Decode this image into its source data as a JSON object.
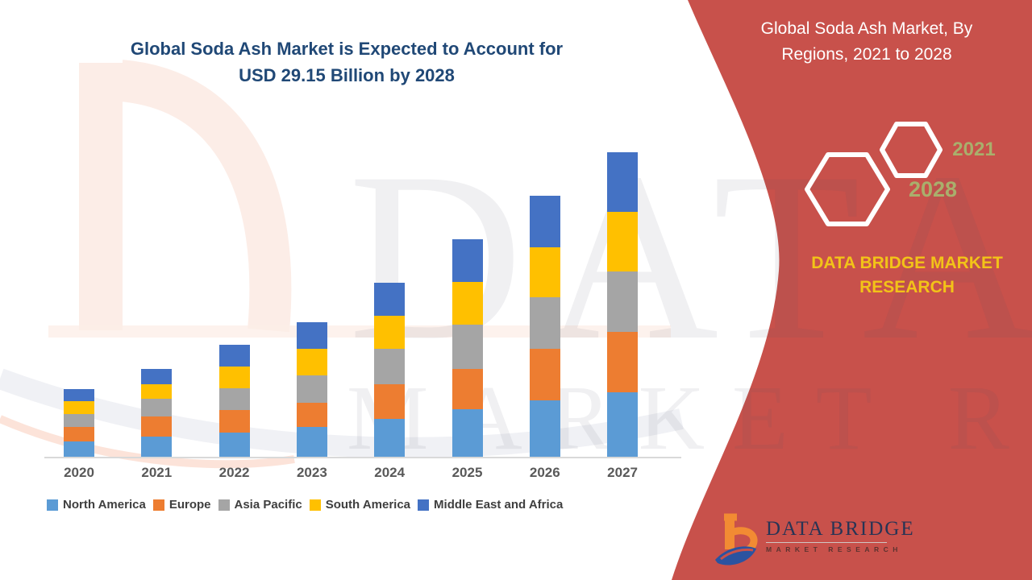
{
  "headline": {
    "line1": "Global Soda Ash Market is Expected to Account for",
    "line2": "USD 29.15 Billion by 2028"
  },
  "side_panel": {
    "title": "Global Soda Ash Market, By Regions, 2021 to 2028",
    "hexagons": [
      {
        "label": "2028"
      },
      {
        "label": "2021"
      }
    ],
    "brand_text": "DATA BRIDGE MARKET RESEARCH"
  },
  "logo": {
    "name_line": "DATA BRIDGE",
    "tagline": "MARKET RESEARCH"
  },
  "watermark": {
    "line1": "DATA BRIDGE",
    "line2": "MARKET RESEARCH"
  },
  "colors": {
    "headline_text": "#204876",
    "panel_background": "#C8514B",
    "panel_text": "#FFFFFF",
    "accent_yellow": "#F2C318",
    "hexagon_year_text": "#A9AF6C",
    "axis_label_text": "#595959",
    "legend_text": "#3F3F3F"
  },
  "chart_data": {
    "type": "bar",
    "stacked": true,
    "title": "",
    "xlabel": "",
    "ylabel": "",
    "grid": false,
    "axis_value_labels_shown": false,
    "legend_position": "bottom",
    "value_unit": "USD billion (estimated; chart shows no value axis)",
    "ylim": [
      0,
      27
    ],
    "categories": [
      "2020",
      "2021",
      "2022",
      "2023",
      "2024",
      "2025",
      "2026",
      "2027"
    ],
    "series": [
      {
        "name": "North America",
        "color": "#5B9BD5",
        "values": [
          1.3,
          1.7,
          2.0,
          2.5,
          3.2,
          4.0,
          4.7,
          5.4
        ]
      },
      {
        "name": "Europe",
        "color": "#ED7D31",
        "values": [
          1.2,
          1.7,
          1.9,
          2.0,
          2.9,
          3.4,
          4.3,
          5.1
        ]
      },
      {
        "name": "Asia Pacific",
        "color": "#A5A5A5",
        "values": [
          1.1,
          1.5,
          1.8,
          2.3,
          3.0,
          3.7,
          4.3,
          5.1
        ]
      },
      {
        "name": "South America",
        "color": "#FFC000",
        "values": [
          1.1,
          1.2,
          1.8,
          2.2,
          2.8,
          3.6,
          4.2,
          5.0
        ]
      },
      {
        "name": "Middle East and Africa",
        "color": "#4472C4",
        "values": [
          1.0,
          1.3,
          1.8,
          2.2,
          2.8,
          3.6,
          4.3,
          5.0
        ]
      }
    ],
    "estimated_totals": [
      5.7,
      7.4,
      9.3,
      11.2,
      14.7,
      18.3,
      21.8,
      25.6
    ]
  }
}
